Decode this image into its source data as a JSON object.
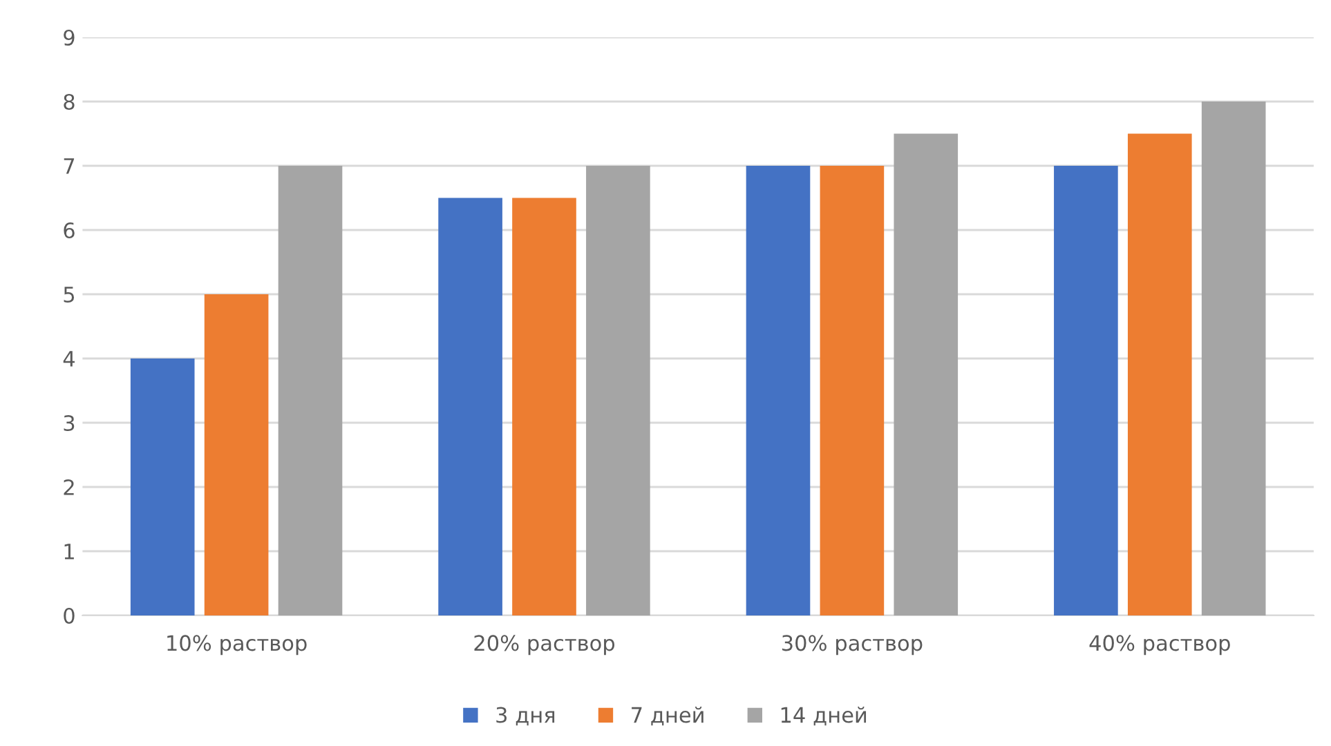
{
  "chart_data": {
    "type": "bar",
    "categories": [
      "10% раствор",
      "20% раствор",
      "30% раствор",
      "40% раствор"
    ],
    "series": [
      {
        "name": "3 дня",
        "color": "#4472c4",
        "values": [
          4,
          6.5,
          7,
          7
        ]
      },
      {
        "name": "7 дней",
        "color": "#ed7d31",
        "values": [
          5,
          6.5,
          7,
          7.5
        ]
      },
      {
        "name": "14 дней",
        "color": "#a5a5a5",
        "values": [
          7,
          7,
          7.5,
          8
        ]
      }
    ],
    "ylim": [
      0,
      9
    ],
    "yticks": [
      0,
      1,
      2,
      3,
      4,
      5,
      6,
      7,
      8,
      9
    ],
    "grid": "y",
    "legend": "bottom"
  }
}
